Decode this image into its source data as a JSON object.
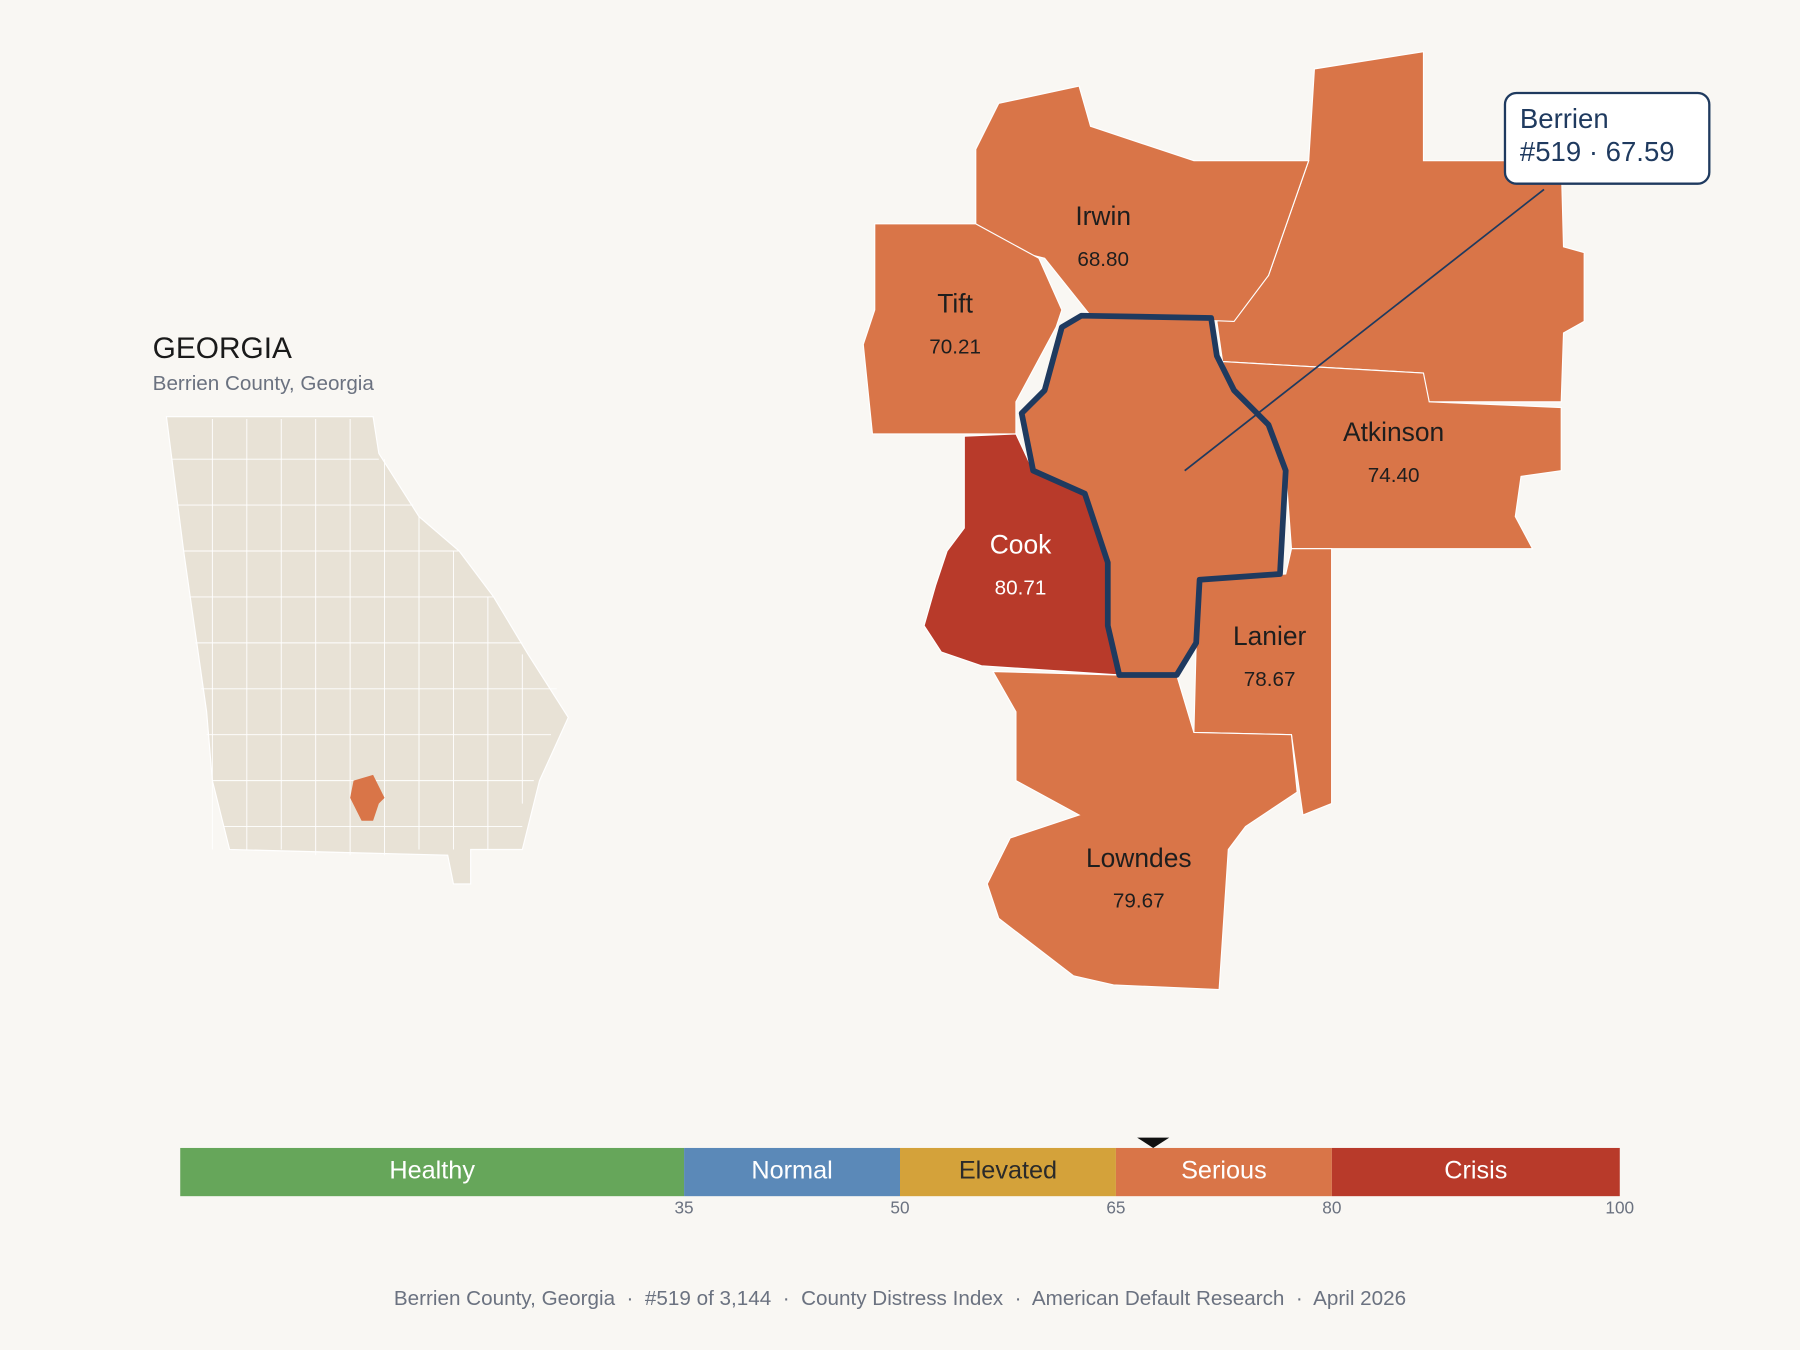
{
  "inset": {
    "title": "GEORGIA",
    "subtitle": "Berrien County, Georgia"
  },
  "callout": {
    "name": "Berrien",
    "label": "#519 · 67.59",
    "value": 67.59
  },
  "counties": [
    {
      "name": "Irwin",
      "score": "68.80",
      "color": "#d97548"
    },
    {
      "name": "Tift",
      "score": "70.21",
      "color": "#d97548"
    },
    {
      "name": "Atkinson",
      "score": "74.40",
      "color": "#d97548"
    },
    {
      "name": "Cook",
      "score": "80.71",
      "color": "#b83a2a"
    },
    {
      "name": "Lanier",
      "score": "78.67",
      "color": "#d97548"
    },
    {
      "name": "Lowndes",
      "score": "79.67",
      "color": "#d97548"
    }
  ],
  "scale": {
    "range": [
      0,
      100
    ],
    "bands": [
      {
        "name": "Healthy",
        "to": 35,
        "color": "#66a65a"
      },
      {
        "name": "Normal",
        "to": 50,
        "color": "#5b89b8"
      },
      {
        "name": "Elevated",
        "to": 65,
        "color": "#d4a23a"
      },
      {
        "name": "Serious",
        "to": 80,
        "color": "#d97548"
      },
      {
        "name": "Crisis",
        "to": 100,
        "color": "#b83a2a"
      }
    ],
    "ticks": [
      35,
      50,
      65,
      80,
      100
    ]
  },
  "footer": "Berrien County, Georgia  ·  #519 of 3,144  ·  County Distress Index  ·  American Default Research  ·  April 2026"
}
